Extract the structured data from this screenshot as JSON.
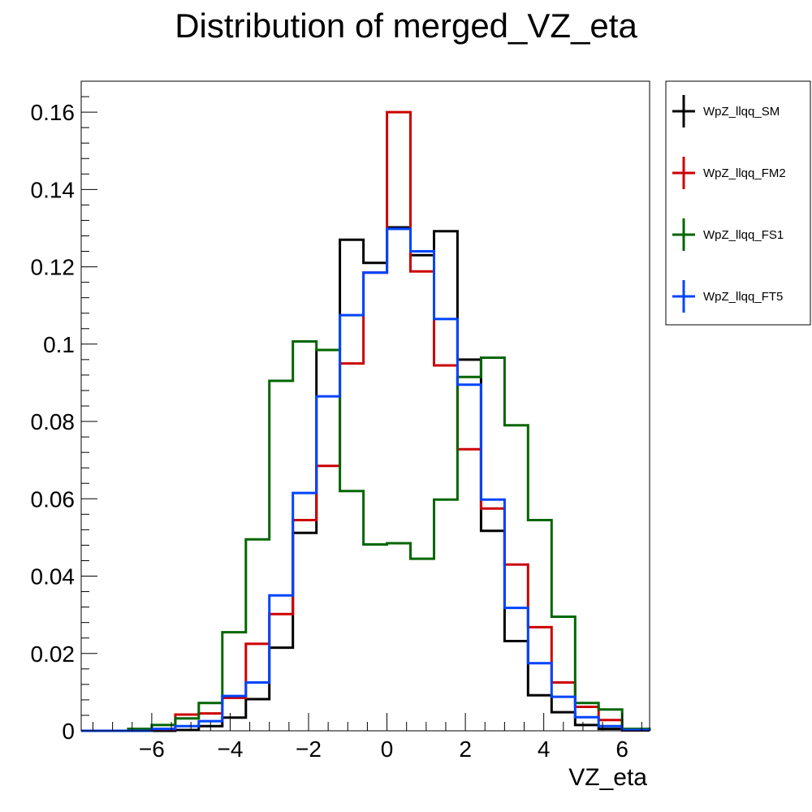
{
  "chart_data": {
    "type": "histogram",
    "title": "Distribution of merged_VZ_eta",
    "xlabel": "VZ_eta",
    "ylabel": "",
    "xlim": [
      -7.8,
      6.7
    ],
    "ylim": [
      0,
      0.168
    ],
    "grid": false,
    "legend_position": "right",
    "bin_edges": [
      -7.8,
      -7.2,
      -6.6,
      -6.0,
      -5.4,
      -4.8,
      -4.2,
      -3.6,
      -3.0,
      -2.4,
      -1.8,
      -1.2,
      -0.6,
      0.0,
      0.6,
      1.2,
      1.8,
      2.4,
      3.0,
      3.6,
      4.2,
      4.8,
      5.4,
      6.0,
      6.7
    ],
    "x_ticks": [
      -6,
      -4,
      -2,
      0,
      2,
      4,
      6
    ],
    "x_tick_labels": [
      "−6",
      "−4",
      "−2",
      "0",
      "2",
      "4",
      "6"
    ],
    "y_ticks": [
      0,
      0.02,
      0.04,
      0.06,
      0.08,
      0.1,
      0.12,
      0.14,
      0.16
    ],
    "y_tick_labels": [
      "0",
      "0.02",
      "0.04",
      "0.06",
      "0.08",
      "0.1",
      "0.12",
      "0.14",
      "0.16"
    ],
    "series": [
      {
        "name": "WpZ_llqq_SM",
        "color": "#000000",
        "values": [
          0,
          0,
          0,
          0,
          0.0002,
          0.0012,
          0.0034,
          0.0082,
          0.0215,
          0.0512,
          0.0985,
          0.127,
          0.121,
          0.1302,
          0.123,
          0.1292,
          0.096,
          0.0517,
          0.0232,
          0.0092,
          0.0048,
          0.0015,
          0.0005,
          0.0001
        ]
      },
      {
        "name": "WpZ_llqq_FM2",
        "color": "#cc0000",
        "values": [
          0,
          0,
          0,
          0.0002,
          0.0042,
          0.0045,
          0.0085,
          0.0225,
          0.0302,
          0.0545,
          0.0685,
          0.095,
          0.1185,
          0.16,
          0.1188,
          0.0945,
          0.0728,
          0.0575,
          0.043,
          0.0268,
          0.0125,
          0.0062,
          0.0028,
          0.0002
        ]
      },
      {
        "name": "WpZ_llqq_FS1",
        "color": "#006600",
        "values": [
          0,
          0,
          0.0005,
          0.0015,
          0.0032,
          0.0072,
          0.0255,
          0.0495,
          0.0905,
          0.1007,
          0.0985,
          0.062,
          0.0482,
          0.0485,
          0.0445,
          0.0598,
          0.0915,
          0.0965,
          0.079,
          0.0545,
          0.0295,
          0.0072,
          0.0055,
          0.0005
        ]
      },
      {
        "name": "WpZ_llqq_FT5",
        "color": "#0044ff",
        "values": [
          0,
          0,
          0,
          0.0005,
          0.0012,
          0.0025,
          0.009,
          0.0125,
          0.035,
          0.0615,
          0.0865,
          0.1075,
          0.1185,
          0.1298,
          0.124,
          0.1065,
          0.0895,
          0.0598,
          0.0318,
          0.0175,
          0.0088,
          0.0035,
          0.0012,
          0.0002
        ]
      }
    ]
  }
}
